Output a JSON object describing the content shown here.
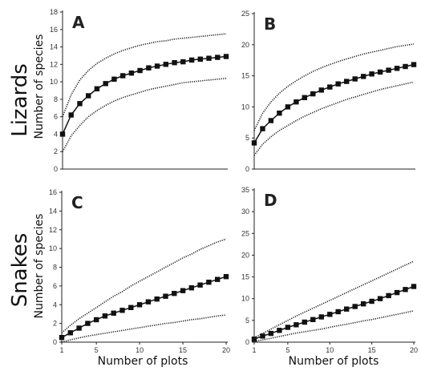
{
  "row_labels": {
    "top": "Lizards",
    "bottom": "Snakes"
  },
  "shared": {
    "ylabel": "Number of species",
    "xlabel": "Number of plots"
  },
  "chart_data": [
    {
      "type": "line",
      "panel": "A",
      "x": [
        1,
        2,
        3,
        4,
        5,
        6,
        7,
        8,
        9,
        10,
        11,
        12,
        13,
        14,
        15,
        16,
        17,
        18,
        19,
        20
      ],
      "ylim": [
        0,
        18
      ],
      "yticks": [
        0,
        2,
        4,
        6,
        8,
        10,
        12,
        14,
        16,
        18
      ],
      "xticks": [],
      "series": [
        {
          "role": "mean",
          "values": [
            4.0,
            6.2,
            7.5,
            8.4,
            9.2,
            9.8,
            10.3,
            10.7,
            11.0,
            11.3,
            11.6,
            11.8,
            12.0,
            12.2,
            12.3,
            12.5,
            12.6,
            12.7,
            12.8,
            12.9
          ]
        },
        {
          "role": "upper",
          "values": [
            6.0,
            8.5,
            10.2,
            11.3,
            12.1,
            12.7,
            13.2,
            13.6,
            13.9,
            14.2,
            14.4,
            14.6,
            14.7,
            14.9,
            15.0,
            15.1,
            15.2,
            15.3,
            15.4,
            15.5
          ]
        },
        {
          "role": "lower",
          "values": [
            2.0,
            3.8,
            5.0,
            6.0,
            6.7,
            7.3,
            7.8,
            8.2,
            8.5,
            8.8,
            9.1,
            9.3,
            9.5,
            9.7,
            9.9,
            10.0,
            10.1,
            10.2,
            10.3,
            10.4
          ]
        }
      ]
    },
    {
      "type": "line",
      "panel": "B",
      "x": [
        1,
        2,
        3,
        4,
        5,
        6,
        7,
        8,
        9,
        10,
        11,
        12,
        13,
        14,
        15,
        16,
        17,
        18,
        19,
        20
      ],
      "ylim": [
        0,
        25
      ],
      "yticks": [
        0,
        5,
        10,
        15,
        20,
        25
      ],
      "xticks": [],
      "series": [
        {
          "role": "mean",
          "values": [
            4.2,
            6.5,
            7.8,
            9.0,
            10.0,
            10.8,
            11.5,
            12.1,
            12.7,
            13.2,
            13.7,
            14.1,
            14.5,
            14.9,
            15.3,
            15.6,
            15.9,
            16.2,
            16.5,
            16.8
          ]
        },
        {
          "role": "upper",
          "values": [
            6.2,
            9.0,
            10.8,
            12.2,
            13.3,
            14.2,
            15.0,
            15.7,
            16.3,
            16.8,
            17.3,
            17.7,
            18.1,
            18.5,
            18.8,
            19.1,
            19.4,
            19.7,
            19.9,
            20.1
          ]
        },
        {
          "role": "lower",
          "values": [
            2.2,
            4.0,
            5.2,
            6.2,
            7.0,
            7.8,
            8.5,
            9.1,
            9.7,
            10.2,
            10.7,
            11.2,
            11.6,
            12.0,
            12.4,
            12.8,
            13.1,
            13.4,
            13.7,
            14.0
          ]
        }
      ]
    },
    {
      "type": "line",
      "panel": "C",
      "x": [
        1,
        2,
        3,
        4,
        5,
        6,
        7,
        8,
        9,
        10,
        11,
        12,
        13,
        14,
        15,
        16,
        17,
        18,
        19,
        20
      ],
      "ylim": [
        0,
        16
      ],
      "yticks": [
        0,
        2,
        4,
        6,
        8,
        10,
        12,
        14,
        16
      ],
      "xticks": [
        1,
        5,
        10,
        15,
        20
      ],
      "series": [
        {
          "role": "mean",
          "values": [
            0.5,
            1.0,
            1.5,
            2.0,
            2.4,
            2.8,
            3.1,
            3.4,
            3.7,
            4.0,
            4.3,
            4.6,
            4.9,
            5.2,
            5.5,
            5.8,
            6.1,
            6.4,
            6.7,
            7.0
          ]
        },
        {
          "role": "upper",
          "values": [
            1.0,
            1.8,
            2.5,
            3.1,
            3.7,
            4.3,
            4.9,
            5.4,
            6.0,
            6.5,
            7.0,
            7.5,
            8.0,
            8.5,
            9.0,
            9.4,
            9.9,
            10.3,
            10.7,
            11.0
          ]
        },
        {
          "role": "lower",
          "values": [
            0.0,
            0.25,
            0.45,
            0.65,
            0.8,
            0.95,
            1.1,
            1.25,
            1.4,
            1.55,
            1.7,
            1.85,
            2.0,
            2.1,
            2.25,
            2.4,
            2.5,
            2.65,
            2.8,
            2.9
          ]
        }
      ]
    },
    {
      "type": "line",
      "panel": "D",
      "x": [
        1,
        2,
        3,
        4,
        5,
        6,
        7,
        8,
        9,
        10,
        11,
        12,
        13,
        14,
        15,
        16,
        17,
        18,
        19,
        20
      ],
      "ylim": [
        0,
        35
      ],
      "yticks": [
        0,
        5,
        10,
        15,
        20,
        25,
        30,
        35
      ],
      "xticks": [
        1,
        5,
        10,
        15,
        20
      ],
      "series": [
        {
          "role": "mean",
          "values": [
            0.7,
            1.4,
            2.0,
            2.7,
            3.4,
            4.0,
            4.6,
            5.2,
            5.8,
            6.4,
            7.0,
            7.6,
            8.2,
            8.8,
            9.4,
            10.0,
            10.7,
            11.4,
            12.1,
            12.8
          ]
        },
        {
          "role": "upper",
          "values": [
            1.0,
            2.0,
            3.0,
            4.0,
            5.0,
            6.0,
            6.9,
            7.8,
            8.7,
            9.6,
            10.5,
            11.4,
            12.3,
            13.2,
            14.1,
            15.0,
            15.9,
            16.8,
            17.7,
            18.6
          ]
        },
        {
          "role": "lower",
          "values": [
            0.2,
            0.5,
            0.9,
            1.3,
            1.7,
            2.1,
            2.4,
            2.7,
            3.0,
            3.4,
            3.8,
            4.1,
            4.5,
            4.9,
            5.2,
            5.6,
            6.0,
            6.4,
            6.8,
            7.2
          ]
        }
      ]
    }
  ]
}
